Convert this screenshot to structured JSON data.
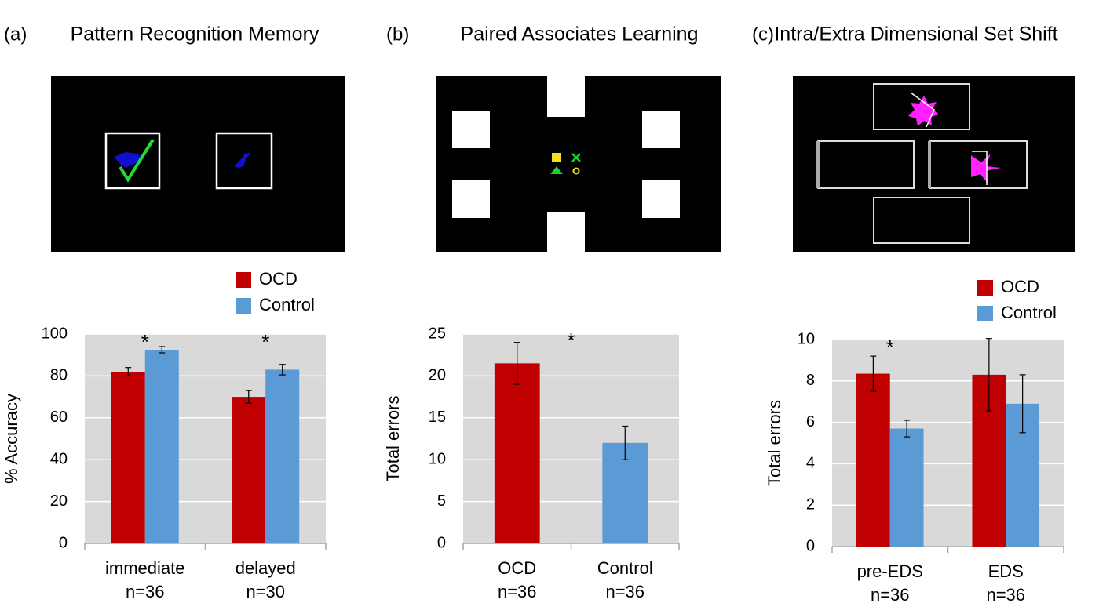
{
  "chart_data": [
    {
      "type": "bar",
      "panel_label": "(a)",
      "title": "Pattern Recognition Memory",
      "y_label": "% Accuracy",
      "categories": [
        "immediate",
        "delayed"
      ],
      "n_labels": [
        "n=36",
        "n=30"
      ],
      "series": [
        {
          "name": "OCD",
          "color": "#c00000",
          "values": [
            82,
            70
          ],
          "errors": [
            2,
            3
          ]
        },
        {
          "name": "Control",
          "color": "#5b9bd5",
          "values": [
            92.5,
            83
          ],
          "errors": [
            1.5,
            2.5
          ]
        }
      ],
      "significance": [
        "*",
        "*"
      ],
      "ylim": [
        0,
        100
      ],
      "yticks": [
        0,
        20,
        40,
        60,
        80,
        100
      ],
      "grid": true,
      "legend": true
    },
    {
      "type": "bar",
      "panel_label": "(b)",
      "title": "Paired Associates Learning",
      "y_label": "Total errors",
      "categories": [
        "OCD",
        "Control"
      ],
      "n_labels": [
        "n=36",
        "n=36"
      ],
      "values": [
        21.5,
        12
      ],
      "errors": [
        2.5,
        2
      ],
      "colors": [
        "#c00000",
        "#5b9bd5"
      ],
      "annotation": "*",
      "ylim": [
        0,
        25
      ],
      "yticks": [
        0,
        5,
        10,
        15,
        20,
        25
      ],
      "grid": true,
      "legend": false
    },
    {
      "type": "bar",
      "panel_label": "(c)",
      "title": "Intra/Extra Dimensional Set Shift",
      "y_label": "Total errors",
      "categories": [
        "pre-EDS",
        "EDS"
      ],
      "n_labels": [
        "n=36",
        "n=36"
      ],
      "series": [
        {
          "name": "OCD",
          "color": "#c00000",
          "values": [
            8.35,
            8.3
          ],
          "errors": [
            0.85,
            1.75
          ]
        },
        {
          "name": "Control",
          "color": "#5b9bd5",
          "values": [
            5.7,
            6.9
          ],
          "errors": [
            0.4,
            1.4
          ]
        }
      ],
      "significance": [
        "*",
        null
      ],
      "ylim": [
        0,
        10
      ],
      "yticks": [
        0,
        2,
        4,
        6,
        8,
        10
      ],
      "grid": true,
      "legend": true
    }
  ]
}
